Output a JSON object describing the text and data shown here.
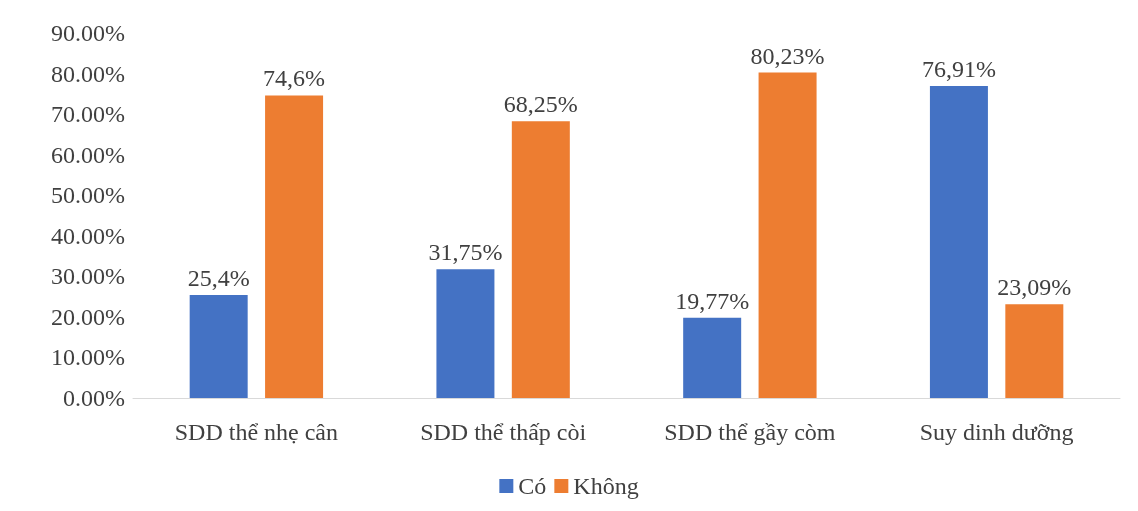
{
  "chart_data": {
    "type": "bar",
    "categories": [
      "SDD thể nhẹ cân",
      "SDD thể thấp còi",
      "SDD thể gầy còm",
      "Suy dinh dưỡng"
    ],
    "series": [
      {
        "name": "Có",
        "color": "#4472c4",
        "values": [
          25.4,
          31.75,
          19.77,
          76.91
        ],
        "value_labels": [
          "25,4%",
          "31,75%",
          "19,77%",
          "76,91%"
        ]
      },
      {
        "name": "Không",
        "color": "#ed7d31",
        "values": [
          74.6,
          68.25,
          80.23,
          23.09
        ],
        "value_labels": [
          "74,6%",
          "68,25%",
          "80,23%",
          "23,09%"
        ]
      }
    ],
    "ylim": [
      0,
      90
    ],
    "yticks": [
      {
        "value": 0,
        "label": "0.00%"
      },
      {
        "value": 10,
        "label": "10.00%"
      },
      {
        "value": 20,
        "label": "20.00%"
      },
      {
        "value": 30,
        "label": "30.00%"
      },
      {
        "value": 40,
        "label": "40.00%"
      },
      {
        "value": 50,
        "label": "50.00%"
      },
      {
        "value": 60,
        "label": "60.00%"
      },
      {
        "value": 70,
        "label": "70.00%"
      },
      {
        "value": 80,
        "label": "80.00%"
      },
      {
        "value": 90,
        "label": "90.00%"
      }
    ],
    "grid": false,
    "legend": "bottom"
  }
}
